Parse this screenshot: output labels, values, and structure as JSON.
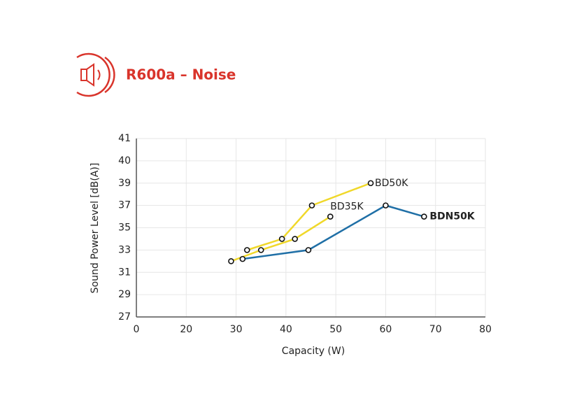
{
  "chart_data": {
    "type": "line",
    "title": "R600a – Noise",
    "x_label": "Capacity (W)",
    "y_label": "Sound Power Level [dB(A)]",
    "xlim": [
      0,
      80
    ],
    "xticks": [
      0,
      20,
      30,
      40,
      50,
      60,
      70,
      80
    ],
    "ylim": [
      27,
      41
    ],
    "yticks": [
      27,
      29,
      31,
      33,
      35,
      37,
      39,
      40,
      41
    ],
    "grid": true,
    "series": [
      {
        "name": "BD50K",
        "color": "#f0d82a",
        "x": [
          32.2,
          39.2,
          45.2,
          57
        ],
        "values": [
          33,
          34,
          37,
          39
        ]
      },
      {
        "name": "BD35K",
        "color": "#f0d82a",
        "x": [
          29,
          35,
          41.8,
          48.9
        ],
        "values": [
          32,
          33,
          34,
          36
        ]
      },
      {
        "name": "BDN50K",
        "color": "#1f6fa6",
        "x": [
          31.3,
          44.5,
          60,
          67.7
        ],
        "values": [
          32.2,
          33,
          37,
          36
        ]
      }
    ]
  }
}
